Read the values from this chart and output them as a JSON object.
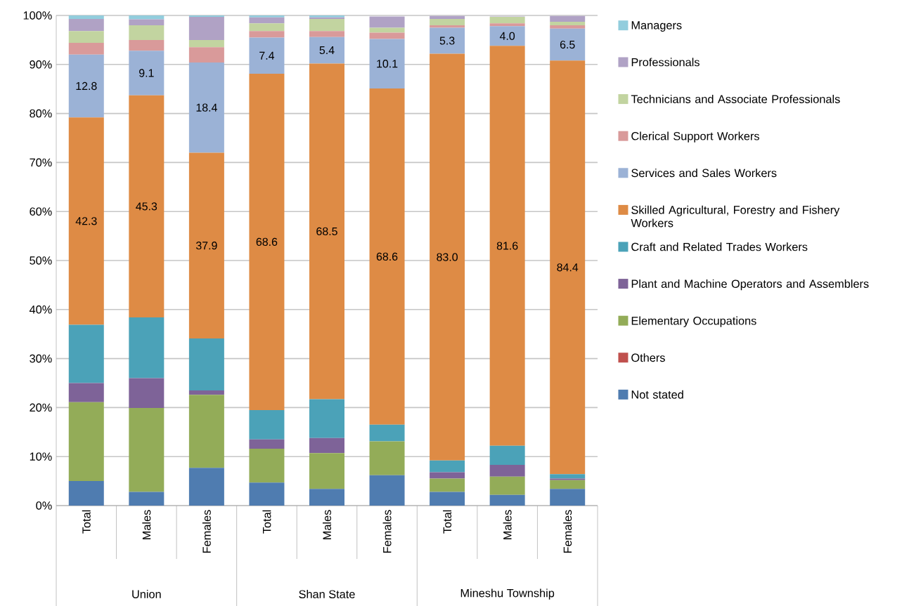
{
  "chart_data": {
    "type": "bar",
    "stacked": true,
    "categories": [
      "Total",
      "Males",
      "Females",
      "Total",
      "Males",
      "Females",
      "Total",
      "Males",
      "Females"
    ],
    "series": [
      {
        "name": "Not stated",
        "color": "#4f7cb0",
        "values": [
          5.0,
          2.8,
          7.7,
          4.7,
          3.4,
          6.2,
          2.8,
          2.2,
          3.4
        ]
      },
      {
        "name": "Others",
        "color": "#c0504d",
        "values": [
          0,
          0,
          0,
          0,
          0,
          0,
          0,
          0,
          0
        ]
      },
      {
        "name": "Elementary Occupations",
        "color": "#93ac58",
        "values": [
          16.1,
          17.1,
          14.9,
          6.9,
          7.3,
          6.9,
          2.7,
          3.7,
          1.8
        ]
      },
      {
        "name": "Plant and Machine Operators and Assemblers",
        "color": "#7e6398",
        "values": [
          3.9,
          6.1,
          0.9,
          1.9,
          3.1,
          0,
          1.3,
          2.4,
          0.3
        ]
      },
      {
        "name": "Craft and Related Trades Workers",
        "color": "#4ba2b8",
        "values": [
          11.9,
          12.4,
          10.6,
          6.0,
          7.9,
          3.4,
          2.4,
          3.9,
          0.9
        ]
      },
      {
        "name": "Skilled Agricultural, Forestry and Fishery Workers",
        "color": "#de8b45",
        "values": [
          42.3,
          45.3,
          37.9,
          68.6,
          68.5,
          68.6,
          83.0,
          81.6,
          84.4
        ],
        "value_labels": [
          "42.3",
          "45.3",
          "37.9",
          "68.6",
          "68.5",
          "68.6",
          "83.0",
          "81.6",
          "84.4"
        ]
      },
      {
        "name": "Services and Sales Workers",
        "color": "#9bb2d6",
        "values": [
          12.8,
          9.1,
          18.4,
          7.4,
          5.4,
          10.1,
          5.3,
          4.0,
          6.5
        ],
        "value_labels": [
          "12.8",
          "9.1",
          "18.4",
          "7.4",
          "5.4",
          "10.1",
          "5.3",
          "4.0",
          "6.5"
        ]
      },
      {
        "name": "Clerical Support Workers",
        "color": "#d99a9a",
        "values": [
          2.4,
          2.2,
          3.1,
          1.3,
          1.2,
          1.3,
          0.5,
          0.6,
          0.7
        ]
      },
      {
        "name": "Technicians and Associate Professionals",
        "color": "#c2d4a0",
        "values": [
          2.4,
          3.0,
          1.5,
          1.6,
          2.5,
          1.0,
          1.3,
          1.3,
          0.7
        ]
      },
      {
        "name": "Professionals",
        "color": "#b0a2c5",
        "values": [
          2.5,
          1.2,
          4.7,
          1.2,
          0.3,
          2.3,
          0.6,
          0.1,
          1.2
        ]
      },
      {
        "name": "Managers",
        "color": "#92cddd",
        "values": [
          0.7,
          0.8,
          0.3,
          0.4,
          0.4,
          null,
          null,
          null,
          null
        ]
      }
    ],
    "ylim": [
      0,
      100
    ],
    "yticks": [
      {
        "value": 0,
        "label": "0%"
      },
      {
        "value": 10,
        "label": "10%"
      },
      {
        "value": 20,
        "label": "20%"
      },
      {
        "value": 30,
        "label": "30%"
      },
      {
        "value": 40,
        "label": "40%"
      },
      {
        "value": 50,
        "label": "50%"
      },
      {
        "value": 60,
        "label": "60%"
      },
      {
        "value": 70,
        "label": "70%"
      },
      {
        "value": 80,
        "label": "80%"
      },
      {
        "value": 90,
        "label": "90%"
      },
      {
        "value": 100,
        "label": "100%"
      }
    ],
    "grid": "y",
    "legend": "right",
    "annotations": [
      "Union",
      "Shan State",
      "Mineshu Township"
    ]
  }
}
